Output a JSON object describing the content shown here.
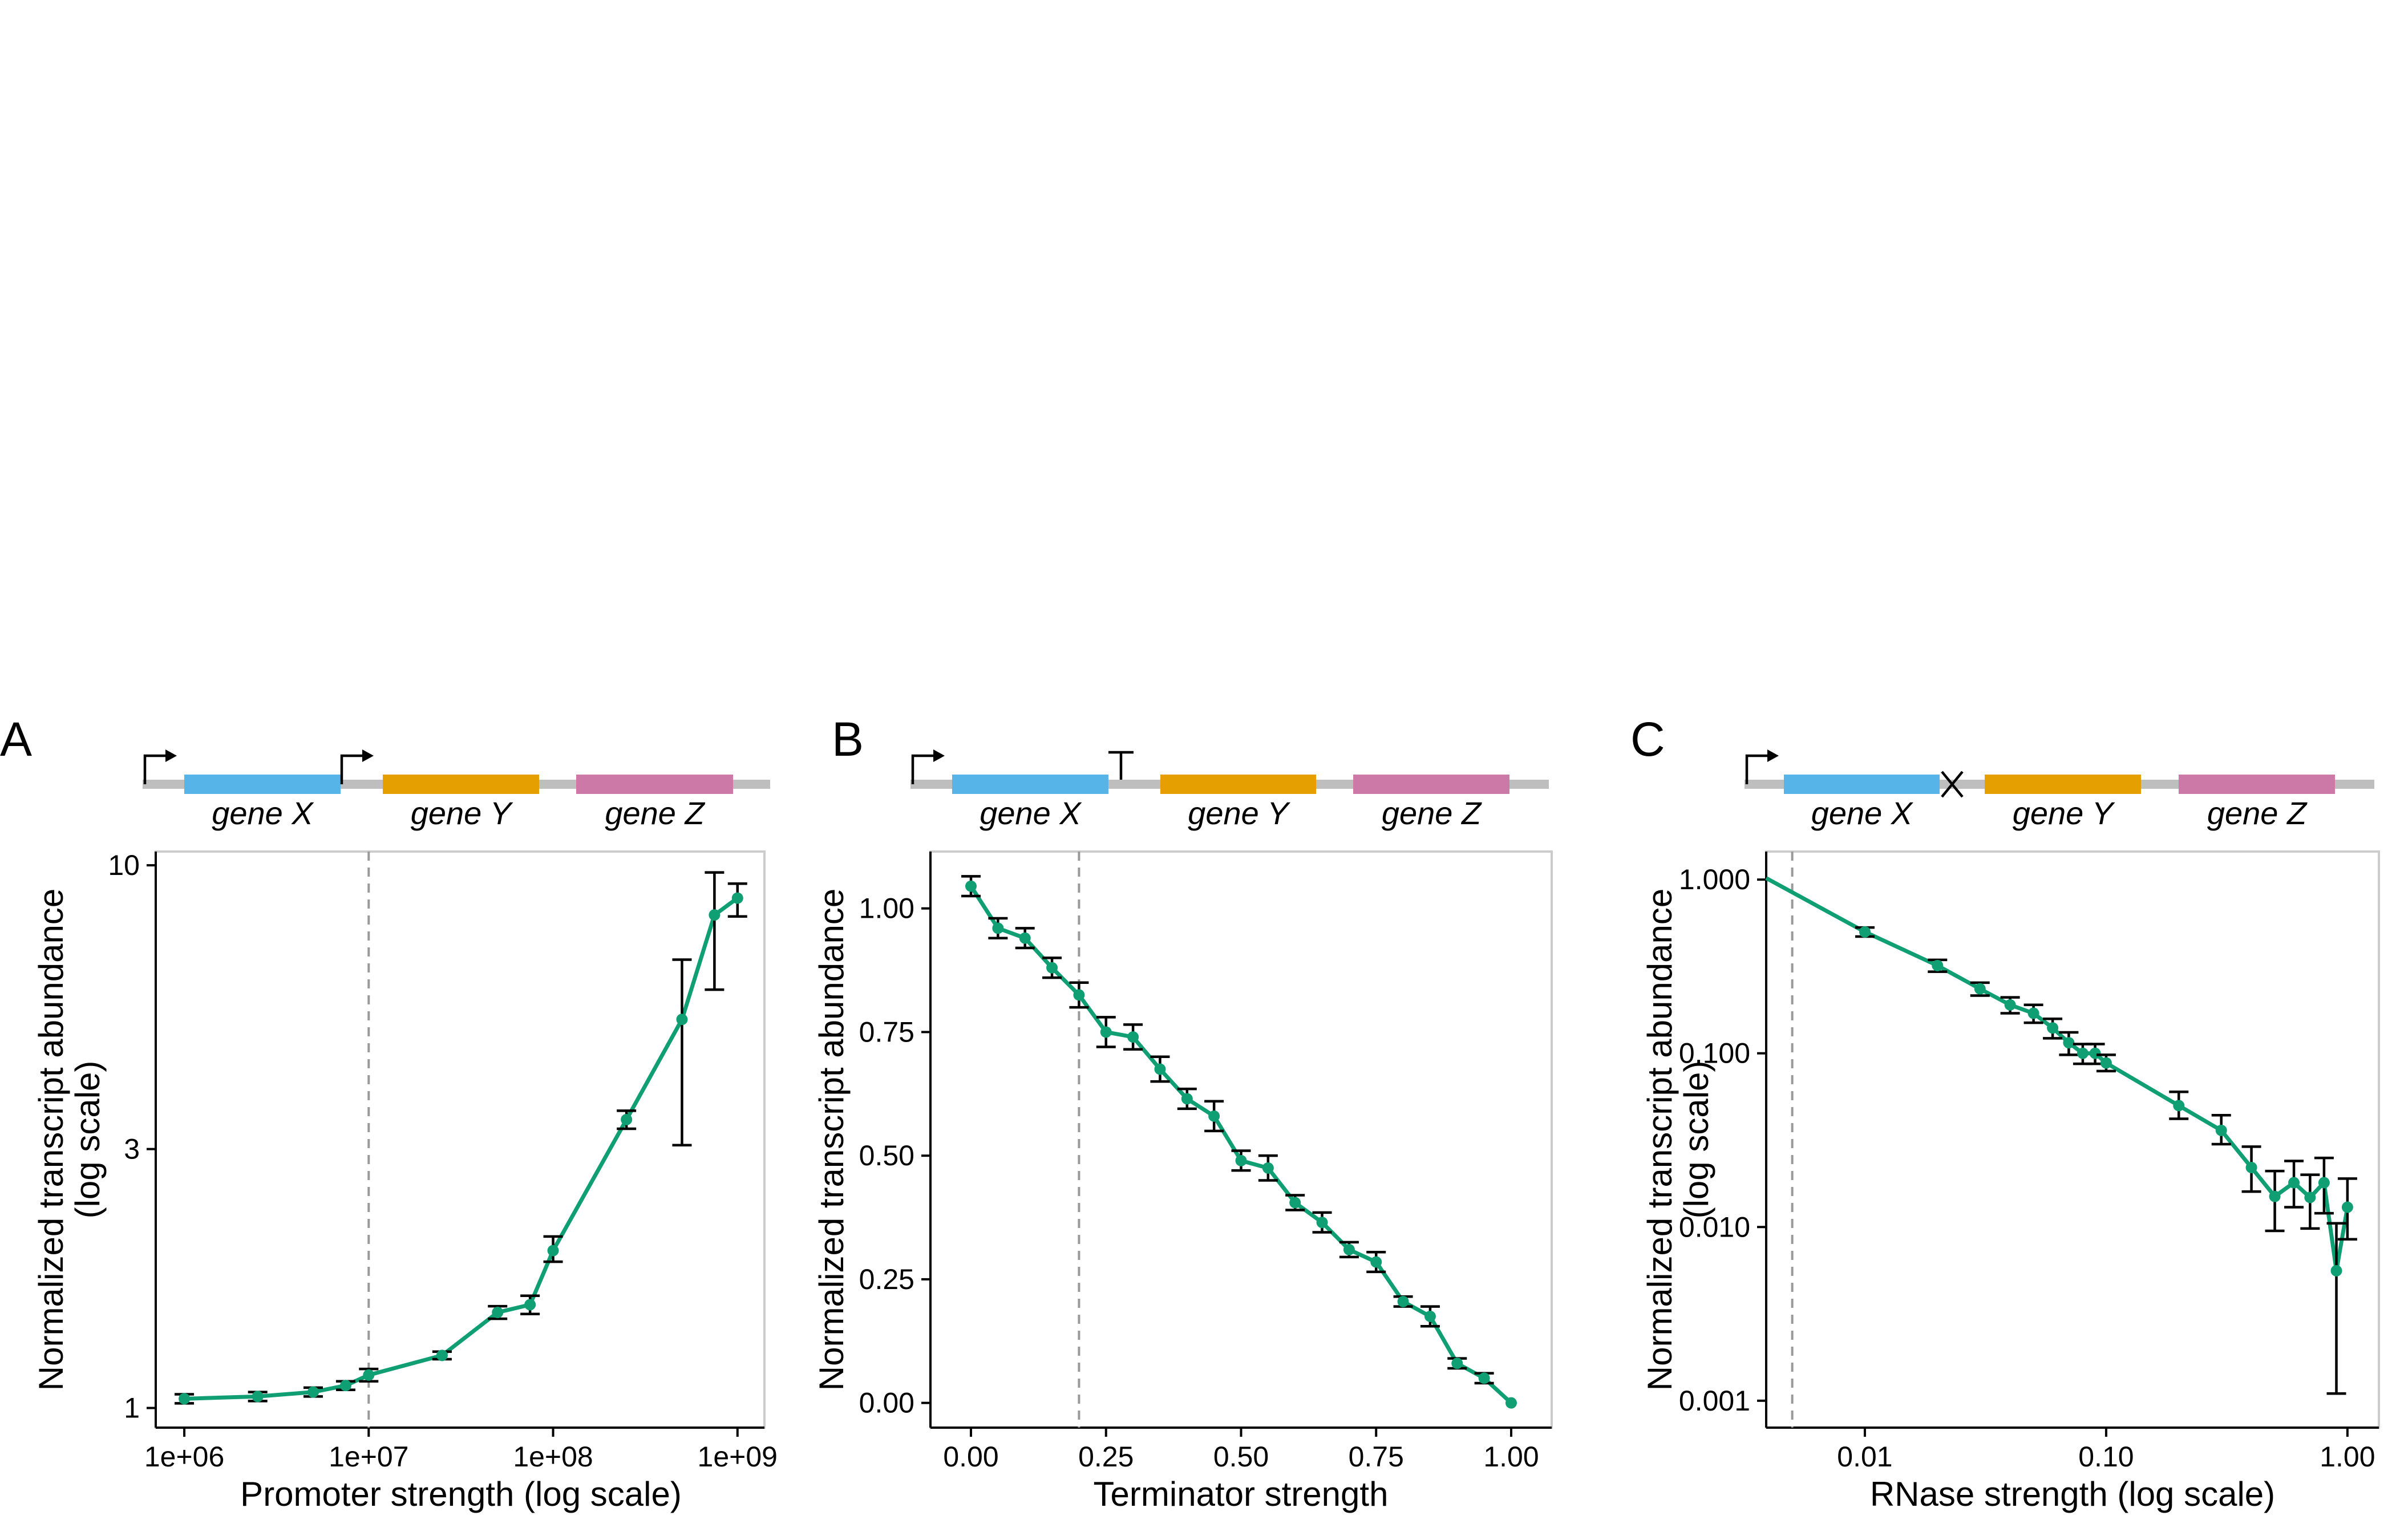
{
  "colors": {
    "series": "#0f9f73",
    "gene_x": "#56b4e9",
    "gene_y": "#e69f00",
    "gene_z": "#cc79a7",
    "backbone": "#bebebe",
    "reference_line": "#999999"
  },
  "chart_data": [
    {
      "panel": "A",
      "type": "line",
      "construct": {
        "glyphs": [
          "promoter-arrow",
          "promoter-arrow"
        ],
        "genes": [
          "gene X",
          "gene Y",
          "gene Z"
        ]
      },
      "xlabel": "Promoter strength (log scale)",
      "ylabel_lines": [
        "Normalized transcript abundance",
        "(log scale)"
      ],
      "xscale": "log",
      "yscale": "log",
      "xlim": [
        700000,
        1400000000
      ],
      "ylim": [
        0.92,
        10.6
      ],
      "xticks": [
        1000000,
        10000000,
        100000000,
        1000000000
      ],
      "xtick_labels": [
        "1e+06",
        "1e+07",
        "1e+08",
        "1e+09"
      ],
      "yticks": [
        1,
        3,
        10
      ],
      "ytick_labels": [
        "1",
        "3",
        "10"
      ],
      "reference_x": 10000000,
      "grid": false,
      "x": [
        1000000,
        2500000,
        5000000,
        7500000,
        10000000,
        25000000,
        50000000,
        75000000,
        100000000,
        250000000,
        500000000,
        750000000,
        1000000000
      ],
      "y": [
        1.04,
        1.05,
        1.07,
        1.1,
        1.15,
        1.25,
        1.5,
        1.55,
        1.95,
        3.4,
        5.2,
        8.1,
        8.7
      ],
      "y_low": [
        1.02,
        1.03,
        1.05,
        1.08,
        1.12,
        1.23,
        1.46,
        1.49,
        1.86,
        3.27,
        3.05,
        5.9,
        8.05
      ],
      "y_high": [
        1.06,
        1.07,
        1.09,
        1.12,
        1.18,
        1.27,
        1.54,
        1.61,
        2.07,
        3.53,
        6.7,
        9.7,
        9.25
      ]
    },
    {
      "panel": "B",
      "type": "line",
      "construct": {
        "glyphs": [
          "promoter-arrow",
          "terminator-t"
        ],
        "genes": [
          "gene X",
          "gene Y",
          "gene Z"
        ]
      },
      "xlabel": "Terminator strength",
      "ylabel_lines": [
        "Normalized transcript abundance"
      ],
      "xscale": "linear",
      "yscale": "linear",
      "xlim": [
        -0.075,
        1.075
      ],
      "ylim": [
        -0.05,
        1.115
      ],
      "xticks": [
        0,
        0.25,
        0.5,
        0.75,
        1
      ],
      "xtick_labels": [
        "0.00",
        "0.25",
        "0.50",
        "0.75",
        "1.00"
      ],
      "yticks": [
        0,
        0.25,
        0.5,
        0.75,
        1
      ],
      "ytick_labels": [
        "0.00",
        "0.25",
        "0.50",
        "0.75",
        "1.00"
      ],
      "reference_x": 0.2,
      "grid": false,
      "x": [
        0,
        0.05,
        0.1,
        0.15,
        0.2,
        0.25,
        0.3,
        0.35,
        0.4,
        0.45,
        0.5,
        0.55,
        0.6,
        0.65,
        0.7,
        0.75,
        0.8,
        0.85,
        0.9,
        0.95,
        1.0
      ],
      "y": [
        1.045,
        0.96,
        0.94,
        0.88,
        0.825,
        0.75,
        0.74,
        0.675,
        0.615,
        0.58,
        0.49,
        0.475,
        0.405,
        0.365,
        0.31,
        0.285,
        0.205,
        0.175,
        0.08,
        0.05,
        0.0
      ],
      "y_low": [
        1.025,
        0.94,
        0.92,
        0.86,
        0.8,
        0.72,
        0.715,
        0.65,
        0.595,
        0.55,
        0.47,
        0.45,
        0.39,
        0.345,
        0.295,
        0.265,
        0.195,
        0.155,
        0.07,
        0.04,
        0.0
      ],
      "y_high": [
        1.065,
        0.98,
        0.96,
        0.9,
        0.85,
        0.78,
        0.765,
        0.7,
        0.635,
        0.61,
        0.51,
        0.5,
        0.42,
        0.385,
        0.325,
        0.305,
        0.215,
        0.195,
        0.09,
        0.06,
        0.0
      ]
    },
    {
      "panel": "C",
      "type": "line",
      "construct": {
        "glyphs": [
          "promoter-arrow",
          "rnase-cut"
        ],
        "genes": [
          "gene X",
          "gene Y",
          "gene Z"
        ]
      },
      "xlabel": "RNase strength (log scale)",
      "ylabel_lines": [
        "Normalized transcript abundance",
        "(log scale)"
      ],
      "xscale": "log",
      "yscale": "log",
      "xlim": [
        0.0039,
        1.35
      ],
      "ylim": [
        0.0007,
        1.45
      ],
      "xticks": [
        0.01,
        0.1,
        1
      ],
      "xtick_labels": [
        "0.01",
        "0.10",
        "1.00"
      ],
      "yticks": [
        0.001,
        0.01,
        0.1,
        1
      ],
      "ytick_labels": [
        "0.001",
        "0.010",
        "0.100",
        "1.000"
      ],
      "reference_x": 0.005,
      "grid": false,
      "line_start": {
        "x": 0.0039,
        "y": 1.02
      },
      "x": [
        0.01,
        0.02,
        0.03,
        0.04,
        0.05,
        0.06,
        0.07,
        0.08,
        0.09,
        0.1,
        0.2,
        0.3,
        0.4,
        0.5,
        0.6,
        0.7,
        0.8,
        0.9,
        1.0
      ],
      "y": [
        0.5,
        0.32,
        0.235,
        0.19,
        0.17,
        0.14,
        0.115,
        0.1,
        0.1,
        0.088,
        0.05,
        0.036,
        0.022,
        0.015,
        0.018,
        0.0148,
        0.018,
        0.0056,
        0.013
      ],
      "y_low": [
        0.47,
        0.295,
        0.215,
        0.17,
        0.15,
        0.122,
        0.098,
        0.087,
        0.087,
        0.079,
        0.042,
        0.03,
        0.016,
        0.0095,
        0.013,
        0.0098,
        0.012,
        0.0011,
        0.0085
      ],
      "y_high": [
        0.53,
        0.345,
        0.255,
        0.21,
        0.19,
        0.158,
        0.132,
        0.113,
        0.113,
        0.098,
        0.06,
        0.044,
        0.029,
        0.021,
        0.024,
        0.02,
        0.025,
        0.0105,
        0.019
      ]
    }
  ]
}
